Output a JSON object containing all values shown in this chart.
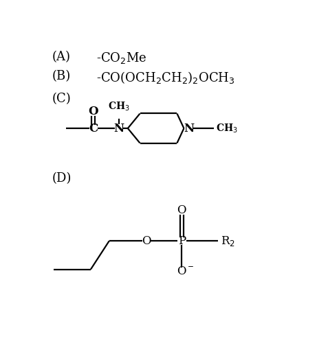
{
  "bg_color": "#ffffff",
  "fig_width": 4.61,
  "fig_height": 5.0,
  "dpi": 100,
  "label_A": "(A)",
  "label_B": "(B)",
  "label_C": "(C)",
  "label_D": "(D)",
  "text_A": "-CO$_2$Me",
  "text_B": "-CO(OCH$_2$CH$_2$)$_2$OCH$_3$"
}
